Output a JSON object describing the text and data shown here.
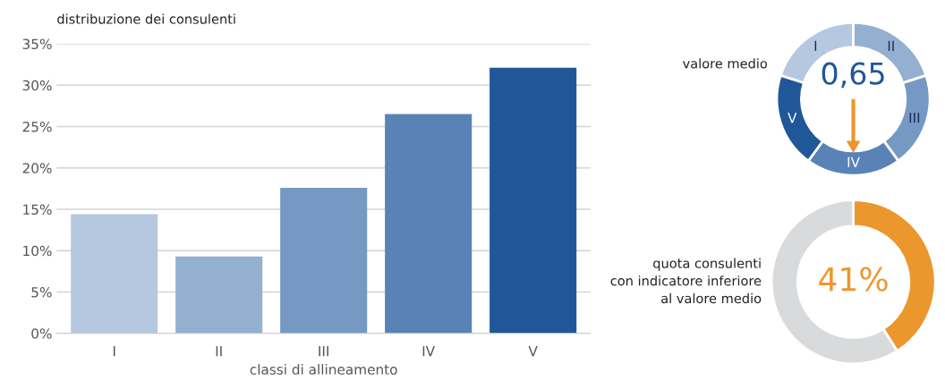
{
  "chart_data": [
    {
      "type": "bar",
      "title": "distribuzione dei consulenti",
      "xlabel": "classi di allineamento",
      "categories": [
        "I",
        "II",
        "III",
        "IV",
        "V"
      ],
      "values": [
        14.4,
        9.3,
        17.6,
        26.5,
        32.1
      ],
      "colors": [
        "#b6c8df",
        "#94b0d1",
        "#7599c3",
        "#5983b6",
        "#1f5799"
      ],
      "ylim": [
        0,
        35
      ],
      "yticks": [
        {
          "value": 0,
          "label": "0%"
        },
        {
          "value": 5,
          "label": "5%"
        },
        {
          "value": 10,
          "label": "10%"
        },
        {
          "value": 15,
          "label": "15%"
        },
        {
          "value": 20,
          "label": "20%"
        },
        {
          "value": 25,
          "label": "25%"
        },
        {
          "value": 30,
          "label": "30%"
        },
        {
          "value": 35,
          "label": "35%"
        }
      ],
      "grid": "y"
    },
    {
      "type": "donut",
      "title": "valore medio",
      "categories": [
        "I",
        "II",
        "III",
        "IV",
        "V"
      ],
      "values": [
        20,
        20,
        20,
        20,
        20
      ],
      "colors": [
        "#b6c8df",
        "#94b0d1",
        "#7599c3",
        "#5983b6",
        "#1f5799"
      ],
      "needle": "IV",
      "annotations": [
        "0,65"
      ]
    },
    {
      "type": "donut",
      "title": "quota consulenti\ncon indicatore inferiore\nal valore medio",
      "categories": [
        null,
        null
      ],
      "values": [
        41,
        59
      ],
      "colors": [
        "#ec962e",
        "#d9dadc"
      ],
      "value_labels": [
        "41%",
        null
      ]
    }
  ]
}
